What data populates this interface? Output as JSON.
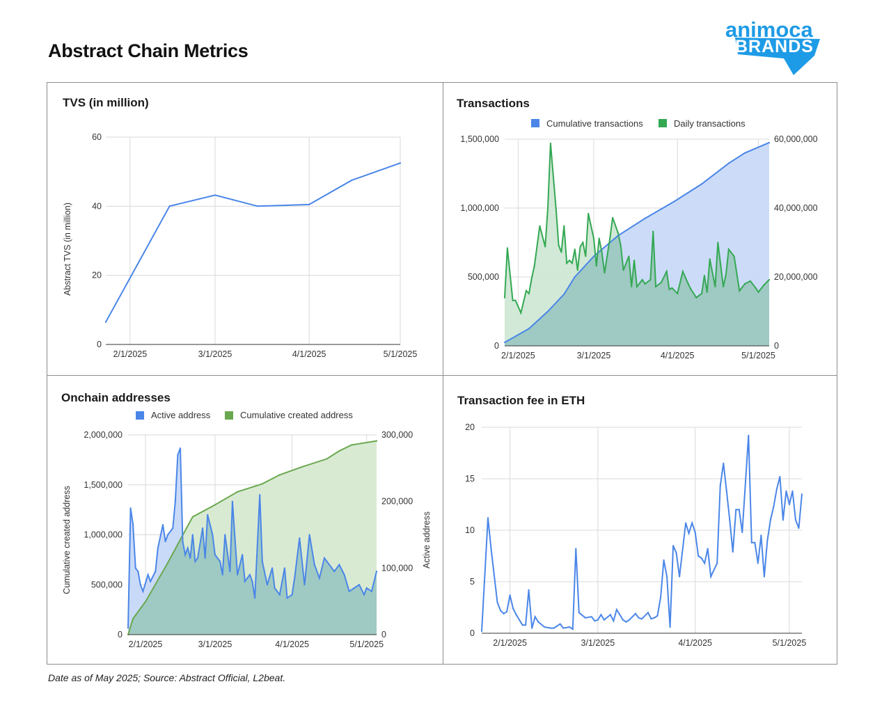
{
  "page": {
    "title": "Abstract Chain Metrics",
    "source": "Date as of May 2025; Source: Abstract Official, L2beat.",
    "logo_line1": "animoca",
    "logo_line2": "BRANDS"
  },
  "colors": {
    "blue_line": "#4a86e8",
    "blue_fill": "#c9daf8",
    "green_line": "#34a853",
    "green_fill": "#cfe8d4",
    "olive_line": "#6aa84f",
    "olive_fill": "#d9ead3",
    "overlap_fill": "#9fc9c3",
    "logo_blue": "#1e9be6"
  },
  "chart_data": [
    {
      "id": "tvs",
      "type": "line",
      "title": "TVS (in million)",
      "ylabel": "Abstract TVS (in million)",
      "ylim": [
        0,
        60
      ],
      "yticks": [
        0,
        20,
        40,
        60
      ],
      "ytick_labels": [
        "0",
        "20",
        "40",
        "60"
      ],
      "xlim": [
        "2025-01-24",
        "2025-05-01"
      ],
      "xticks": [
        "2025-02-01",
        "2025-03-01",
        "2025-04-01",
        "2025-05-01"
      ],
      "xtick_labels": [
        "2/1/2025",
        "3/1/2025",
        "4/1/2025",
        "5/1/2025"
      ],
      "grid": true,
      "series": [
        {
          "x": [
            "2025-01-24",
            "2025-02-14",
            "2025-03-01",
            "2025-03-15",
            "2025-04-01",
            "2025-04-15",
            "2025-05-01"
          ],
          "values": [
            6.5,
            40,
            43.2,
            40,
            40.5,
            47.5,
            52.5
          ],
          "color": "#4a86e8"
        }
      ]
    },
    {
      "id": "transactions",
      "type": "area",
      "title": "Transactions",
      "legend": [
        "Cumulative transactions",
        "Daily transactions"
      ],
      "legend_position": "top",
      "ylim_left": [
        0,
        1500000
      ],
      "yticks_left": [
        "0",
        "500,000",
        "1,000,000",
        "1,500,000"
      ],
      "ylim_right": [
        0,
        60000000
      ],
      "yticks_right": [
        "0",
        "20,000,000",
        "40,000,000",
        "60,000,000"
      ],
      "xlim": [
        "2025-01-27",
        "2025-05-05"
      ],
      "xticks": [
        "2025-02-01",
        "2025-03-01",
        "2025-04-01",
        "2025-05-01"
      ],
      "xtick_labels": [
        "2/1/2025",
        "3/1/2025",
        "4/1/2025",
        "5/1/2025"
      ],
      "grid": true,
      "cumulative": {
        "x": [
          "2025-01-27",
          "2025-02-05",
          "2025-02-12",
          "2025-02-18",
          "2025-02-22",
          "2025-03-01",
          "2025-03-10",
          "2025-03-20",
          "2025-03-31",
          "2025-04-10",
          "2025-04-20",
          "2025-04-26",
          "2025-05-05"
        ],
        "values": [
          1000000,
          5000000,
          10000000,
          15000000,
          20000000,
          26000000,
          32000000,
          37000000,
          42000000,
          47000000,
          53000000,
          56000000,
          59000000
        ]
      },
      "daily": {
        "x": [
          "2025-01-27",
          "2025-01-28",
          "2025-01-30",
          "2025-01-31",
          "2025-02-02",
          "2025-02-04",
          "2025-02-05",
          "2025-02-06",
          "2025-02-07",
          "2025-02-09",
          "2025-02-11",
          "2025-02-12",
          "2025-02-13",
          "2025-02-15",
          "2025-02-16",
          "2025-02-17",
          "2025-02-18",
          "2025-02-19",
          "2025-02-20",
          "2025-02-21",
          "2025-02-22",
          "2025-02-23",
          "2025-02-24",
          "2025-02-25",
          "2025-02-26",
          "2025-02-27",
          "2025-03-01",
          "2025-03-02",
          "2025-03-03",
          "2025-03-04",
          "2025-03-05",
          "2025-03-07",
          "2025-03-08",
          "2025-03-10",
          "2025-03-11",
          "2025-03-12",
          "2025-03-14",
          "2025-03-15",
          "2025-03-16",
          "2025-03-17",
          "2025-03-19",
          "2025-03-20",
          "2025-03-22",
          "2025-03-23",
          "2025-03-24",
          "2025-03-26",
          "2025-03-28",
          "2025-03-29",
          "2025-03-30",
          "2025-04-01",
          "2025-04-03",
          "2025-04-05",
          "2025-04-06",
          "2025-04-08",
          "2025-04-10",
          "2025-04-11",
          "2025-04-12",
          "2025-04-13",
          "2025-04-15",
          "2025-04-16",
          "2025-04-18",
          "2025-04-19",
          "2025-04-20",
          "2025-04-22",
          "2025-04-24",
          "2025-04-26",
          "2025-04-28",
          "2025-04-30",
          "2025-05-01",
          "2025-05-03",
          "2025-05-05"
        ],
        "values": [
          350000,
          710000,
          330000,
          330000,
          240000,
          400000,
          380000,
          490000,
          580000,
          870000,
          720000,
          1000000,
          1470000,
          1000000,
          730000,
          680000,
          870000,
          600000,
          620000,
          600000,
          700000,
          550000,
          720000,
          750000,
          650000,
          960000,
          780000,
          580000,
          780000,
          680000,
          530000,
          780000,
          930000,
          820000,
          730000,
          550000,
          650000,
          430000,
          620000,
          430000,
          480000,
          450000,
          480000,
          830000,
          430000,
          460000,
          540000,
          410000,
          420000,
          380000,
          540000,
          450000,
          410000,
          350000,
          380000,
          510000,
          390000,
          630000,
          430000,
          750000,
          430000,
          520000,
          700000,
          650000,
          400000,
          450000,
          470000,
          420000,
          390000,
          440000,
          480000
        ]
      }
    },
    {
      "id": "addresses",
      "type": "area",
      "title": "Onchain addresses",
      "legend": [
        "Active address",
        "Cumulative created address"
      ],
      "legend_position": "top",
      "ylabel_left": "Cumulative created address",
      "ylabel_right": "Active address",
      "ylim_left": [
        0,
        2000000
      ],
      "yticks_left": [
        "0",
        "500,000",
        "1,000,000",
        "1,500,000",
        "2,000,000"
      ],
      "ylim_right": [
        0,
        300000
      ],
      "yticks_right": [
        "0",
        "100,000",
        "200,000",
        "300,000"
      ],
      "xlim": [
        "2025-01-25",
        "2025-05-05"
      ],
      "xticks": [
        "2025-02-01",
        "2025-03-01",
        "2025-04-01",
        "2025-05-01"
      ],
      "xtick_labels": [
        "2/1/2025",
        "3/1/2025",
        "4/1/2025",
        "5/1/2025"
      ],
      "grid": true,
      "cumulative_created": {
        "x": [
          "2025-01-25",
          "2025-01-27",
          "2025-02-01",
          "2025-02-10",
          "2025-02-20",
          "2025-03-01",
          "2025-03-10",
          "2025-03-20",
          "2025-03-27",
          "2025-04-05",
          "2025-04-15",
          "2025-04-20",
          "2025-04-25",
          "2025-05-05"
        ],
        "values": [
          0,
          160000,
          330000,
          720000,
          1180000,
          1300000,
          1430000,
          1510000,
          1600000,
          1680000,
          1760000,
          1840000,
          1900000,
          1940000
        ]
      },
      "active": {
        "x": [
          "2025-01-25",
          "2025-01-26",
          "2025-01-27",
          "2025-01-28",
          "2025-01-29",
          "2025-01-30",
          "2025-01-31",
          "2025-02-02",
          "2025-02-03",
          "2025-02-05",
          "2025-02-06",
          "2025-02-08",
          "2025-02-09",
          "2025-02-10",
          "2025-02-12",
          "2025-02-13",
          "2025-02-14",
          "2025-02-15",
          "2025-02-16",
          "2025-02-17",
          "2025-02-18",
          "2025-02-19",
          "2025-02-20",
          "2025-02-21",
          "2025-02-22",
          "2025-02-24",
          "2025-02-25",
          "2025-02-26",
          "2025-02-28",
          "2025-03-01",
          "2025-03-03",
          "2025-03-04",
          "2025-03-05",
          "2025-03-07",
          "2025-03-08",
          "2025-03-10",
          "2025-03-12",
          "2025-03-13",
          "2025-03-15",
          "2025-03-16",
          "2025-03-17",
          "2025-03-19",
          "2025-03-20",
          "2025-03-22",
          "2025-03-24",
          "2025-03-25",
          "2025-03-27",
          "2025-03-29",
          "2025-03-30",
          "2025-04-01",
          "2025-04-02",
          "2025-04-04",
          "2025-04-06",
          "2025-04-08",
          "2025-04-10",
          "2025-04-12",
          "2025-04-14",
          "2025-04-15",
          "2025-04-18",
          "2025-04-20",
          "2025-04-22",
          "2025-04-24",
          "2025-04-26",
          "2025-04-28",
          "2025-04-30",
          "2025-05-01",
          "2025-05-03",
          "2025-05-05"
        ],
        "values": [
          10000,
          190000,
          165000,
          100000,
          95000,
          75000,
          65000,
          90000,
          80000,
          95000,
          130000,
          165000,
          140000,
          150000,
          160000,
          200000,
          270000,
          280000,
          140000,
          120000,
          130000,
          115000,
          150000,
          110000,
          115000,
          160000,
          115000,
          180000,
          150000,
          120000,
          110000,
          90000,
          150000,
          95000,
          200000,
          90000,
          120000,
          80000,
          90000,
          80000,
          55000,
          210000,
          110000,
          75000,
          100000,
          70000,
          60000,
          100000,
          55000,
          60000,
          85000,
          145000,
          75000,
          150000,
          105000,
          85000,
          115000,
          110000,
          95000,
          105000,
          90000,
          65000,
          70000,
          75000,
          60000,
          70000,
          65000,
          95000
        ]
      }
    },
    {
      "id": "fee",
      "type": "line",
      "title": "Transaction fee in ETH",
      "ylim": [
        0,
        20
      ],
      "yticks": [
        "0",
        "5",
        "10",
        "15",
        "20"
      ],
      "xlim": [
        "2025-01-23",
        "2025-05-05"
      ],
      "xticks": [
        "2025-02-01",
        "2025-03-01",
        "2025-04-01",
        "2025-05-01"
      ],
      "xtick_labels": [
        "2/1/2025",
        "3/1/2025",
        "4/1/2025",
        "5/1/2025"
      ],
      "grid": true,
      "series": [
        {
          "color": "#4a86e8",
          "x": [
            "2025-01-23",
            "2025-01-25",
            "2025-01-26",
            "2025-01-28",
            "2025-01-29",
            "2025-01-30",
            "2025-01-31",
            "2025-02-01",
            "2025-02-02",
            "2025-02-03",
            "2025-02-05",
            "2025-02-06",
            "2025-02-07",
            "2025-02-08",
            "2025-02-09",
            "2025-02-10",
            "2025-02-12",
            "2025-02-14",
            "2025-02-15",
            "2025-02-17",
            "2025-02-18",
            "2025-02-20",
            "2025-02-21",
            "2025-02-22",
            "2025-02-23",
            "2025-02-25",
            "2025-02-27",
            "2025-02-28",
            "2025-03-01",
            "2025-03-02",
            "2025-03-03",
            "2025-03-05",
            "2025-03-06",
            "2025-03-07",
            "2025-03-09",
            "2025-03-10",
            "2025-03-11",
            "2025-03-13",
            "2025-03-14",
            "2025-03-15",
            "2025-03-17",
            "2025-03-18",
            "2025-03-19",
            "2025-03-20",
            "2025-03-21",
            "2025-03-22",
            "2025-03-23",
            "2025-03-24",
            "2025-03-25",
            "2025-03-26",
            "2025-03-27",
            "2025-03-29",
            "2025-03-30",
            "2025-03-31",
            "2025-04-01",
            "2025-04-02",
            "2025-04-03",
            "2025-04-04",
            "2025-04-05",
            "2025-04-06",
            "2025-04-08",
            "2025-04-09",
            "2025-04-10",
            "2025-04-11",
            "2025-04-12",
            "2025-04-13",
            "2025-04-14",
            "2025-04-15",
            "2025-04-16",
            "2025-04-18",
            "2025-04-19",
            "2025-04-20",
            "2025-04-21",
            "2025-04-22",
            "2025-04-23",
            "2025-04-24",
            "2025-04-25",
            "2025-04-26",
            "2025-04-27",
            "2025-04-28",
            "2025-04-29",
            "2025-04-30",
            "2025-05-01",
            "2025-05-02",
            "2025-05-03",
            "2025-05-04",
            "2025-05-05"
          ],
          "values": [
            0.2,
            11.2,
            8.2,
            3,
            2.2,
            1.9,
            2.1,
            3.7,
            2.4,
            1.8,
            0.8,
            0.8,
            4.2,
            0.5,
            1.6,
            1.1,
            0.6,
            0.5,
            0.5,
            0.9,
            0.5,
            0.6,
            0.4,
            8.2,
            2.0,
            1.5,
            1.6,
            1.2,
            1.3,
            1.8,
            1.3,
            1.8,
            1.2,
            2.3,
            1.3,
            1.1,
            1.3,
            1.9,
            1.5,
            1.4,
            2.0,
            1.4,
            1.5,
            1.7,
            3.5,
            7.1,
            5.5,
            0.6,
            8.5,
            7.8,
            5.5,
            10.7,
            9.7,
            10.7,
            9.8,
            7.5,
            7.3,
            6.8,
            8.2,
            5.5,
            6.8,
            14.3,
            16.5,
            13.8,
            11.0,
            7.9,
            12.0,
            12.0,
            9.8,
            19.2,
            8.8,
            8.8,
            6.8,
            9.5,
            5.5,
            9.0,
            11.0,
            12.3,
            14.0,
            15.2,
            11.0,
            13.8,
            12.5,
            13.8,
            11.0,
            10.2,
            13.5
          ]
        }
      ]
    }
  ]
}
